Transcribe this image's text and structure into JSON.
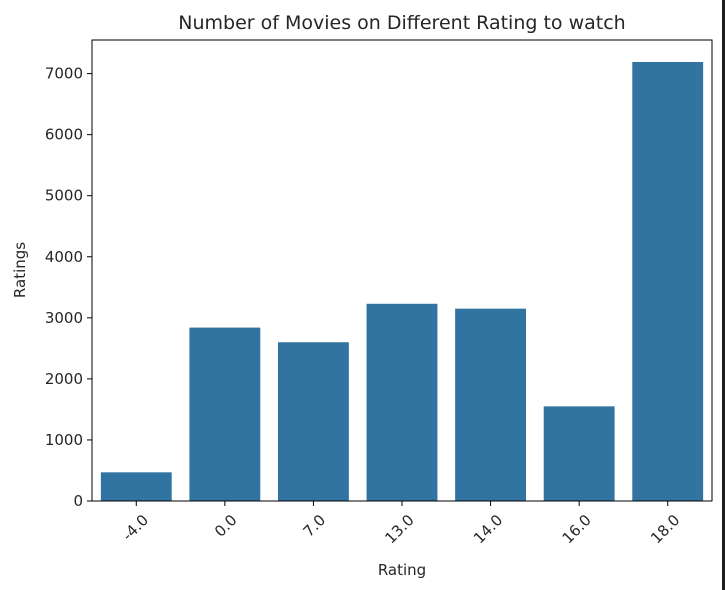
{
  "chart_data": {
    "type": "bar",
    "title": "Number of Movies on Different Rating to watch",
    "xlabel": "Rating",
    "ylabel": "Ratings",
    "categories": [
      "-4.0",
      "0.0",
      "7.0",
      "13.0",
      "14.0",
      "16.0",
      "18.0"
    ],
    "values": [
      470,
      2840,
      2600,
      3230,
      3150,
      1550,
      7190
    ],
    "ylim": [
      0,
      7550
    ],
    "yticks": [
      "0",
      "1000",
      "2000",
      "3000",
      "4000",
      "5000",
      "6000",
      "7000"
    ],
    "grid": false,
    "bar_color": "#3274a1",
    "x_tick_rotation": 45
  }
}
